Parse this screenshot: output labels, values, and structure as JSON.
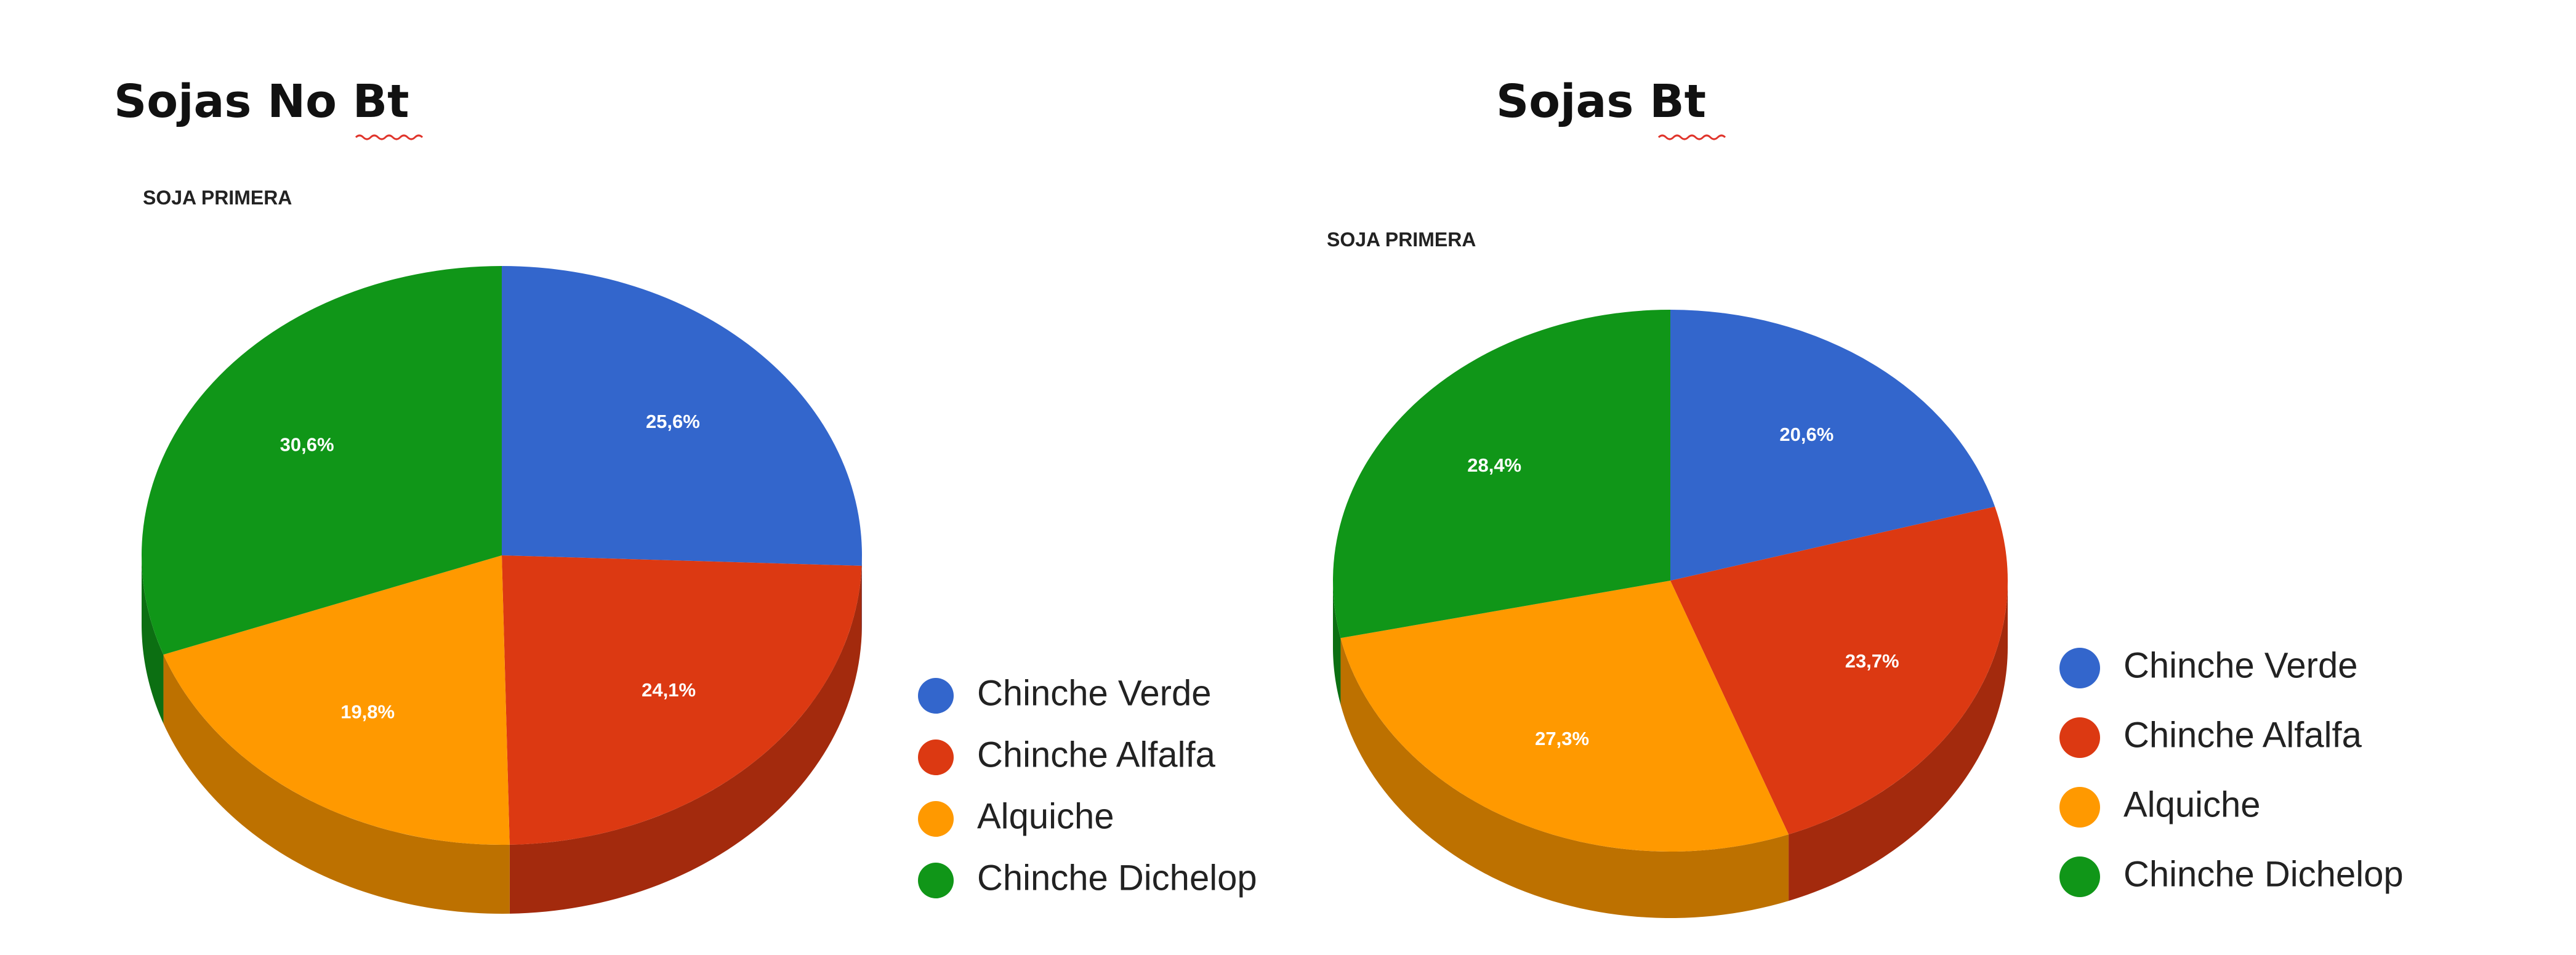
{
  "chart_data": [
    {
      "type": "pie",
      "heading": "Sojas No Bt",
      "title": "SOJA PRIMERA",
      "categories": [
        "Chinche Verde",
        "Chinche Alfalfa",
        "Alquiche",
        "Chinche Dichelop"
      ],
      "values": [
        25.6,
        24.1,
        19.8,
        30.6
      ],
      "data_labels": [
        "25,6%",
        "24,1%",
        "19,8%",
        "30,6%"
      ],
      "colors": [
        "#3366cc",
        "#dc3912",
        "#ff9900",
        "#109618"
      ],
      "legend_position": "right",
      "style": "3d"
    },
    {
      "type": "pie",
      "heading": "Sojas Bt",
      "title": "SOJA PRIMERA",
      "categories": [
        "Chinche Verde",
        "Chinche Alfalfa",
        "Alquiche",
        "Chinche Dichelop"
      ],
      "values": [
        20.6,
        23.7,
        27.3,
        28.4
      ],
      "data_labels": [
        "20,6%",
        "23,7%",
        "27,3%",
        "28,4%"
      ],
      "colors": [
        "#3366cc",
        "#dc3912",
        "#ff9900",
        "#109618"
      ],
      "legend_position": "right",
      "style": "3d"
    }
  ]
}
